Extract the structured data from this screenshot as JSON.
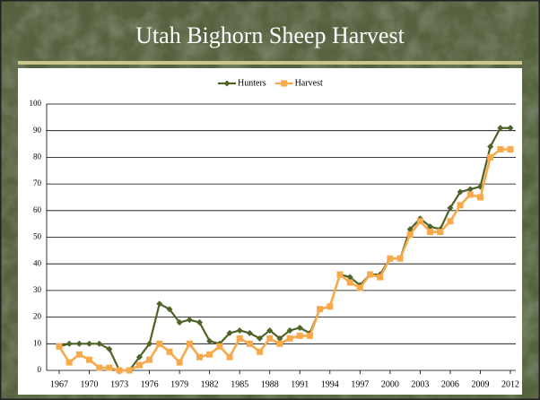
{
  "chart_data": {
    "type": "line",
    "title": "Utah Bighorn Sheep Harvest",
    "x": [
      1967,
      1968,
      1969,
      1970,
      1971,
      1972,
      1973,
      1974,
      1975,
      1976,
      1977,
      1978,
      1979,
      1980,
      1981,
      1982,
      1983,
      1984,
      1985,
      1986,
      1987,
      1988,
      1989,
      1990,
      1991,
      1992,
      1993,
      1994,
      1995,
      1996,
      1997,
      1998,
      1999,
      2000,
      2001,
      2002,
      2003,
      2004,
      2005,
      2006,
      2007,
      2008,
      2009,
      2010,
      2011,
      2012
    ],
    "series": [
      {
        "name": "Hunters",
        "color": "#4f6228",
        "marker": "diamond",
        "values": [
          9,
          10,
          10,
          10,
          10,
          8,
          0,
          0,
          5,
          10,
          25,
          23,
          18,
          19,
          18,
          11,
          10,
          14,
          15,
          14,
          12,
          15,
          12,
          15,
          16,
          14,
          23,
          24,
          36,
          35,
          32,
          36,
          36,
          42,
          42,
          53,
          57,
          54,
          53,
          61,
          67,
          68,
          69,
          84,
          91,
          91
        ]
      },
      {
        "name": "Harvest",
        "color": "#f7a94c",
        "marker": "square",
        "values": [
          9,
          3,
          6,
          4,
          1,
          1,
          0,
          0,
          2,
          4,
          10,
          7,
          3,
          10,
          5,
          6,
          9,
          5,
          12,
          10,
          7,
          12,
          10,
          12,
          13,
          13,
          23,
          24,
          36,
          33,
          31,
          36,
          35,
          42,
          42,
          51,
          56,
          52,
          52,
          56,
          62,
          66,
          65,
          80,
          83,
          83
        ]
      }
    ],
    "xlim": [
      1967,
      2012
    ],
    "xticks": [
      1967,
      1970,
      1973,
      1976,
      1979,
      1982,
      1985,
      1988,
      1991,
      1994,
      1997,
      2000,
      2003,
      2006,
      2009,
      2012
    ],
    "ylim": [
      0,
      100
    ],
    "yticks": [
      0,
      10,
      20,
      30,
      40,
      50,
      60,
      70,
      80,
      90,
      100
    ],
    "grid": true,
    "legend": "top"
  }
}
